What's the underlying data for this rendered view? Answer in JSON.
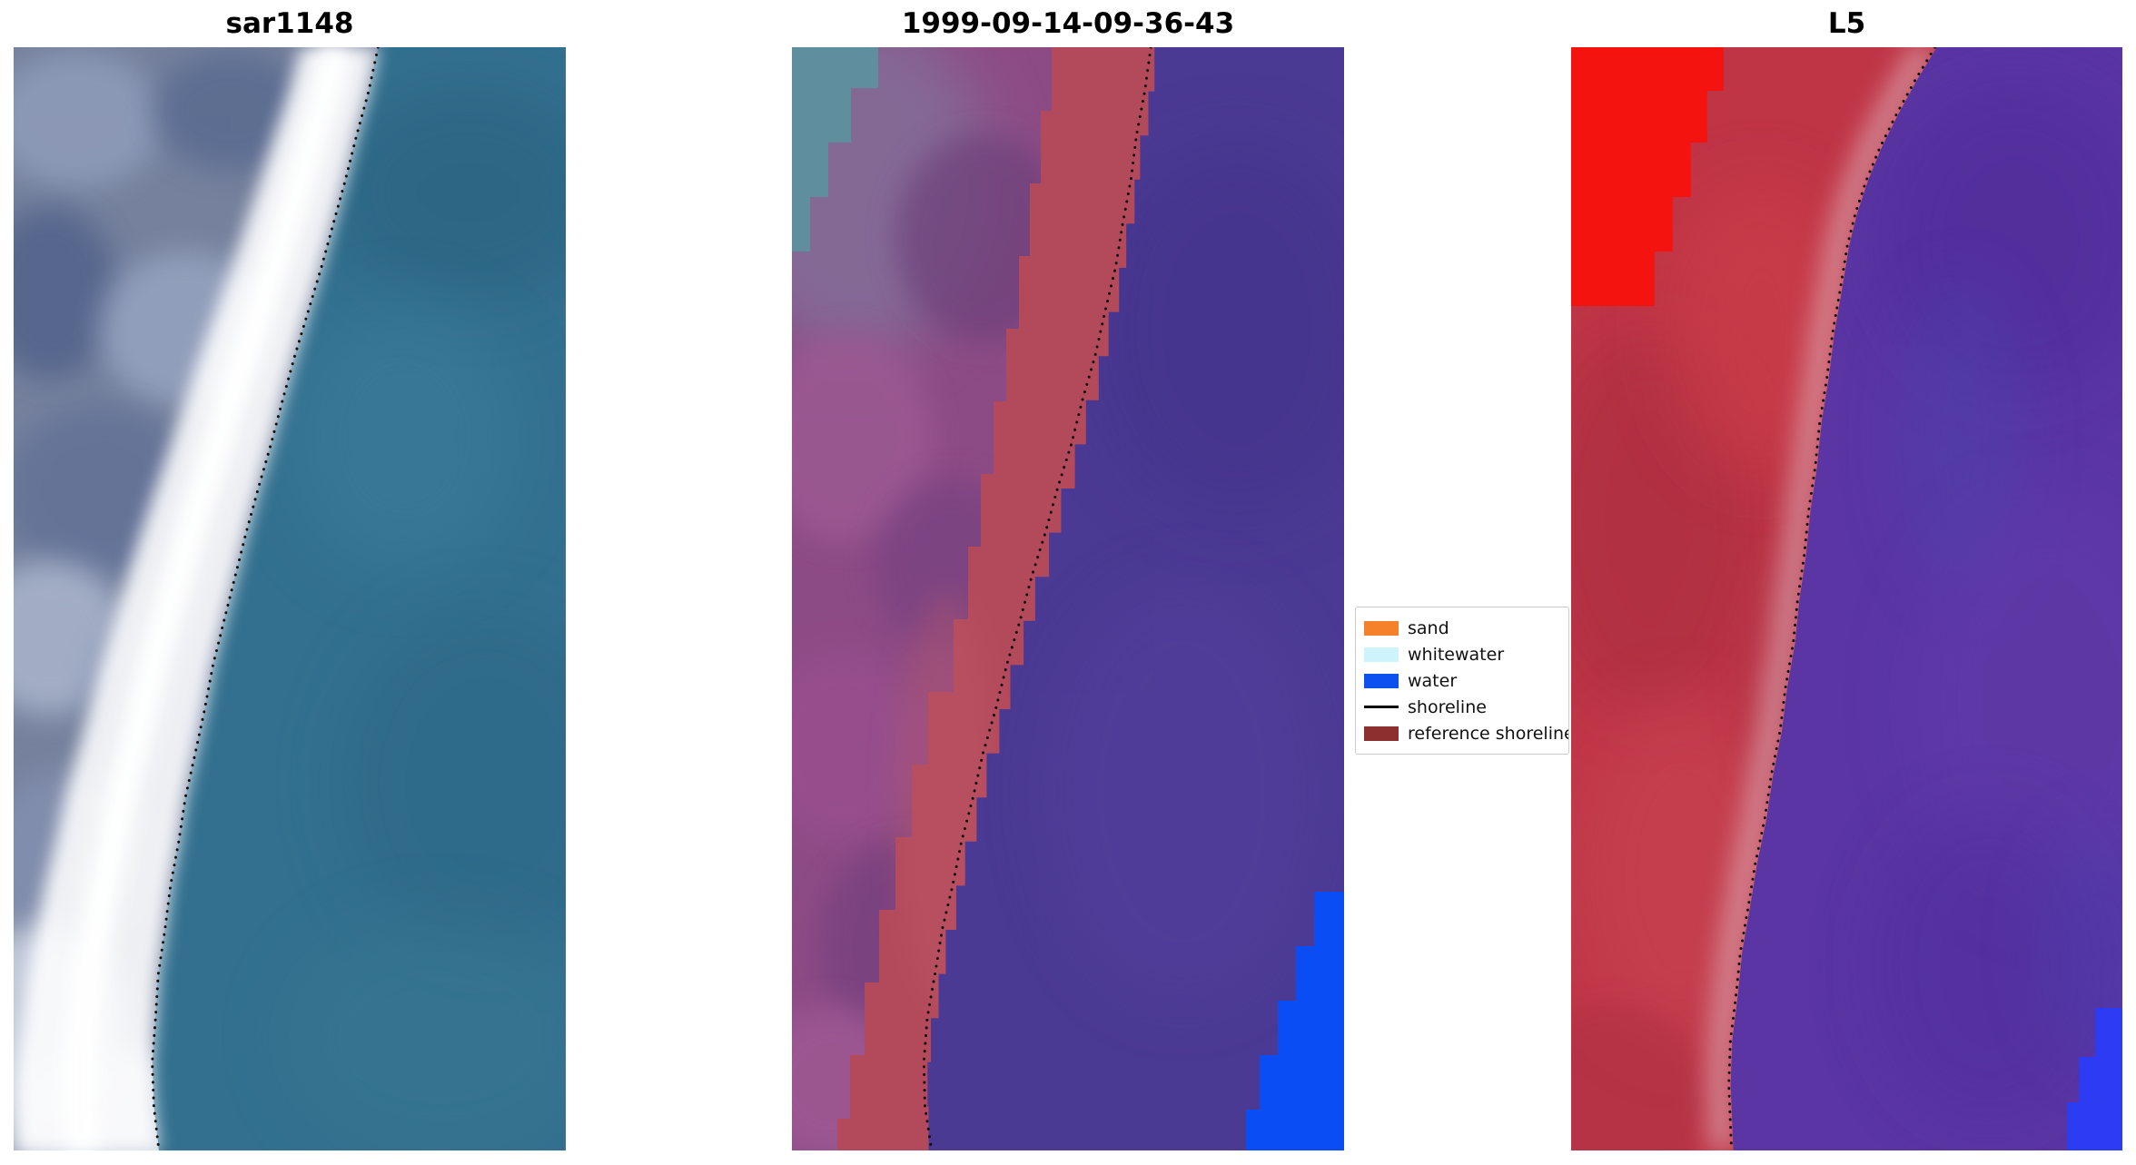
{
  "figure": {
    "panels": [
      {
        "title": "sar1148"
      },
      {
        "title": "1999-09-14-09-36-43"
      },
      {
        "title": "L5"
      }
    ],
    "legend": {
      "items": [
        {
          "label": "sand",
          "color": "#f5822a",
          "style": "patch"
        },
        {
          "label": "whitewater",
          "color": "#cdf3fd",
          "style": "patch"
        },
        {
          "label": "water",
          "color": "#0c50f0",
          "style": "patch"
        },
        {
          "label": "shoreline",
          "color": "#000000",
          "style": "line"
        },
        {
          "label": "reference shoreline",
          "color": "#8d2f2f",
          "style": "patch"
        }
      ]
    }
  },
  "chart_data": [
    {
      "type": "heatmap",
      "title": "sar1148",
      "description": "SAR image tile: mottled grey-blue land on the left, bright white surf/beach band running diagonally, uniform teal-blue water on the right, dotted black shoreline overlay along the band's seaward edge",
      "shoreline_points": [
        [
          0.66,
          0.0
        ],
        [
          0.643,
          0.04
        ],
        [
          0.621,
          0.08
        ],
        [
          0.601,
          0.12
        ],
        [
          0.579,
          0.16
        ],
        [
          0.557,
          0.2
        ],
        [
          0.533,
          0.24
        ],
        [
          0.509,
          0.28
        ],
        [
          0.487,
          0.32
        ],
        [
          0.466,
          0.36
        ],
        [
          0.443,
          0.4
        ],
        [
          0.421,
          0.44
        ],
        [
          0.401,
          0.48
        ],
        [
          0.381,
          0.52
        ],
        [
          0.361,
          0.56
        ],
        [
          0.346,
          0.6
        ],
        [
          0.329,
          0.64
        ],
        [
          0.311,
          0.68
        ],
        [
          0.299,
          0.72
        ],
        [
          0.284,
          0.76
        ],
        [
          0.274,
          0.8
        ],
        [
          0.262,
          0.84
        ],
        [
          0.257,
          0.88
        ],
        [
          0.251,
          0.92
        ],
        [
          0.254,
          0.96
        ],
        [
          0.263,
          1.0
        ]
      ]
    },
    {
      "type": "heatmap",
      "title": "1999-09-14-09-36-43",
      "description": "Classified overlay tile: magenta-purple land, brick-red reference shoreline band, dark slate-purple water, bright blue water patch in bottom-right corner, small teal patch top-left, dotted black shoreline along the red/purple boundary",
      "shoreline_points": [
        [
          0.65,
          0.0
        ],
        [
          0.639,
          0.04
        ],
        [
          0.624,
          0.08
        ],
        [
          0.614,
          0.12
        ],
        [
          0.599,
          0.16
        ],
        [
          0.586,
          0.2
        ],
        [
          0.567,
          0.24
        ],
        [
          0.549,
          0.28
        ],
        [
          0.526,
          0.32
        ],
        [
          0.506,
          0.36
        ],
        [
          0.481,
          0.4
        ],
        [
          0.459,
          0.44
        ],
        [
          0.434,
          0.48
        ],
        [
          0.413,
          0.52
        ],
        [
          0.389,
          0.56
        ],
        [
          0.369,
          0.6
        ],
        [
          0.346,
          0.64
        ],
        [
          0.328,
          0.68
        ],
        [
          0.307,
          0.72
        ],
        [
          0.291,
          0.76
        ],
        [
          0.272,
          0.8
        ],
        [
          0.259,
          0.84
        ],
        [
          0.245,
          0.88
        ],
        [
          0.239,
          0.92
        ],
        [
          0.241,
          0.96
        ],
        [
          0.253,
          1.0
        ]
      ]
    },
    {
      "type": "heatmap",
      "title": "L5",
      "description": "Landsat 5 false-colour tile: crimson-red land on the left with a bright pure-red patch in the top-left corner, pale pink beach fringe, purple water on the right, bright blue patch in bottom-right corner, dotted black shoreline along the red/purple boundary",
      "shoreline_points": [
        [
          0.66,
          0.0
        ],
        [
          0.624,
          0.03
        ],
        [
          0.591,
          0.06
        ],
        [
          0.561,
          0.09
        ],
        [
          0.536,
          0.12
        ],
        [
          0.516,
          0.15
        ],
        [
          0.501,
          0.18
        ],
        [
          0.488,
          0.22
        ],
        [
          0.474,
          0.26
        ],
        [
          0.464,
          0.3
        ],
        [
          0.451,
          0.34
        ],
        [
          0.443,
          0.38
        ],
        [
          0.431,
          0.42
        ],
        [
          0.423,
          0.46
        ],
        [
          0.411,
          0.5
        ],
        [
          0.403,
          0.54
        ],
        [
          0.389,
          0.58
        ],
        [
          0.379,
          0.62
        ],
        [
          0.363,
          0.66
        ],
        [
          0.351,
          0.7
        ],
        [
          0.334,
          0.74
        ],
        [
          0.321,
          0.78
        ],
        [
          0.307,
          0.82
        ],
        [
          0.299,
          0.86
        ],
        [
          0.289,
          0.9
        ],
        [
          0.286,
          0.94
        ],
        [
          0.291,
          1.0
        ]
      ]
    }
  ]
}
